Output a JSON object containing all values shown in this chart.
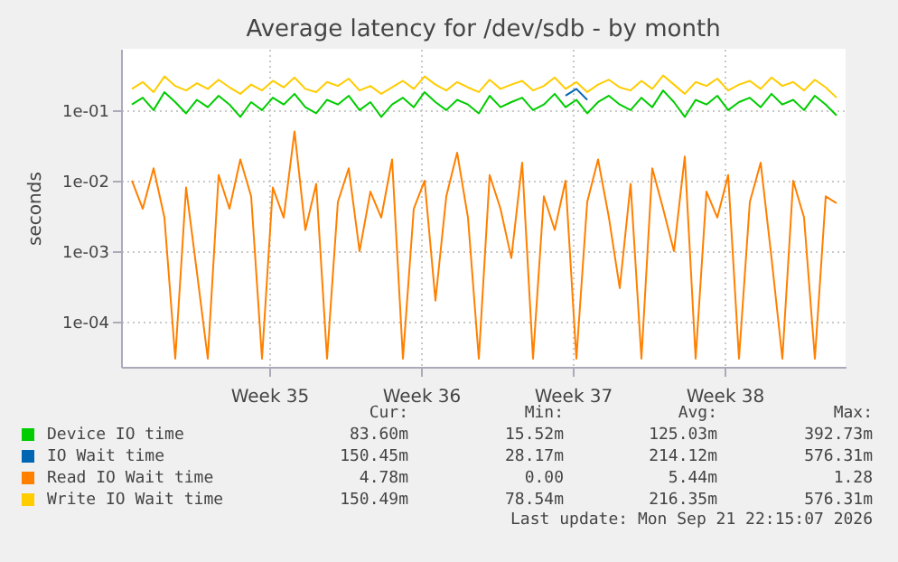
{
  "chart_data": {
    "type": "line",
    "title": "Average latency for /dev/sdb - by month",
    "ylabel": "seconds",
    "log": true,
    "grid": true,
    "legend": "bottom",
    "xlim": [
      "2026-08-19T12:00",
      "2026-09-21T22:00"
    ],
    "xticks": [
      {
        "value": "2026-08-26T08:00",
        "label": "Week 35"
      },
      {
        "value": "2026-09-02T08:00",
        "label": "Week 36"
      },
      {
        "value": "2026-09-09T08:00",
        "label": "Week 37"
      },
      {
        "value": "2026-09-16T08:00",
        "label": "Week 38"
      }
    ],
    "ylim": [
      2.3e-05,
      0.74
    ],
    "yticks": [
      {
        "value": 0.0001,
        "label": "1e-04"
      },
      {
        "value": 0.001,
        "label": "1e-03"
      },
      {
        "value": 0.01,
        "label": "1e-02"
      },
      {
        "value": 0.1,
        "label": "1e-01"
      }
    ],
    "x": [
      "2026-08-20T00:00",
      "2026-08-20T12:00",
      "2026-08-21T00:00",
      "2026-08-21T12:00",
      "2026-08-22T00:00",
      "2026-08-22T12:00",
      "2026-08-23T00:00",
      "2026-08-23T12:00",
      "2026-08-24T00:00",
      "2026-08-24T12:00",
      "2026-08-25T00:00",
      "2026-08-25T12:00",
      "2026-08-26T00:00",
      "2026-08-26T12:00",
      "2026-08-27T00:00",
      "2026-08-27T12:00",
      "2026-08-28T00:00",
      "2026-08-28T12:00",
      "2026-08-29T00:00",
      "2026-08-29T12:00",
      "2026-08-30T00:00",
      "2026-08-30T12:00",
      "2026-08-31T00:00",
      "2026-08-31T12:00",
      "2026-09-01T00:00",
      "2026-09-01T12:00",
      "2026-09-02T00:00",
      "2026-09-02T12:00",
      "2026-09-03T00:00",
      "2026-09-03T12:00",
      "2026-09-04T00:00",
      "2026-09-04T12:00",
      "2026-09-05T00:00",
      "2026-09-05T12:00",
      "2026-09-06T00:00",
      "2026-09-06T12:00",
      "2026-09-07T00:00",
      "2026-09-07T12:00",
      "2026-09-08T00:00",
      "2026-09-08T12:00",
      "2026-09-09T00:00",
      "2026-09-09T12:00",
      "2026-09-10T00:00",
      "2026-09-10T12:00",
      "2026-09-11T00:00",
      "2026-09-11T12:00",
      "2026-09-12T00:00",
      "2026-09-12T12:00",
      "2026-09-13T00:00",
      "2026-09-13T12:00",
      "2026-09-14T00:00",
      "2026-09-14T12:00",
      "2026-09-15T00:00",
      "2026-09-15T12:00",
      "2026-09-16T00:00",
      "2026-09-16T12:00",
      "2026-09-17T00:00",
      "2026-09-17T12:00",
      "2026-09-18T00:00",
      "2026-09-18T12:00",
      "2026-09-19T00:00",
      "2026-09-19T12:00",
      "2026-09-20T00:00",
      "2026-09-20T12:00",
      "2026-09-21T00:00",
      "2026-09-21T12:00"
    ],
    "series": [
      {
        "name": "Device IO time",
        "color": "#00cc00",
        "values": [
          0.12,
          0.15,
          0.1,
          0.18,
          0.13,
          0.09,
          0.14,
          0.11,
          0.16,
          0.12,
          0.08,
          0.13,
          0.1,
          0.15,
          0.12,
          0.17,
          0.11,
          0.09,
          0.14,
          0.12,
          0.16,
          0.1,
          0.13,
          0.08,
          0.12,
          0.15,
          0.11,
          0.18,
          0.13,
          0.1,
          0.14,
          0.12,
          0.09,
          0.16,
          0.11,
          0.13,
          0.15,
          0.1,
          0.12,
          0.17,
          0.11,
          0.14,
          0.09,
          0.13,
          0.16,
          0.12,
          0.1,
          0.15,
          0.11,
          0.19,
          0.13,
          0.08,
          0.14,
          0.12,
          0.16,
          0.1,
          0.13,
          0.15,
          0.11,
          0.17,
          0.12,
          0.14,
          0.1,
          0.16,
          0.12,
          0.084
        ]
      },
      {
        "name": "IO Wait time",
        "color": "#0066b3",
        "values": [
          null,
          null,
          null,
          null,
          null,
          null,
          null,
          null,
          null,
          null,
          null,
          null,
          null,
          null,
          null,
          null,
          null,
          null,
          null,
          null,
          null,
          null,
          null,
          null,
          null,
          null,
          null,
          null,
          null,
          null,
          null,
          null,
          null,
          null,
          null,
          null,
          null,
          null,
          null,
          null,
          0.16,
          0.2,
          0.14,
          null,
          null,
          null,
          null,
          null,
          null,
          null,
          null,
          null,
          null,
          null,
          null,
          null,
          null,
          null,
          null,
          null,
          null,
          null,
          null,
          null,
          null,
          null
        ]
      },
      {
        "name": "Read IO Wait time",
        "color": "#ff8000",
        "values": [
          0.01,
          0.004,
          0.015,
          0.003,
          3e-05,
          0.008,
          0.0005,
          3e-05,
          0.012,
          0.004,
          0.02,
          0.006,
          3e-05,
          0.008,
          0.003,
          0.05,
          0.002,
          0.009,
          3e-05,
          0.005,
          0.015,
          0.001,
          0.007,
          0.003,
          0.02,
          3e-05,
          0.004,
          0.01,
          0.0002,
          0.006,
          0.025,
          0.003,
          3e-05,
          0.012,
          0.004,
          0.0008,
          0.018,
          3e-05,
          0.006,
          0.002,
          0.01,
          3e-05,
          0.005,
          0.02,
          0.003,
          0.0003,
          0.009,
          3e-05,
          0.015,
          0.004,
          0.001,
          0.022,
          3e-05,
          0.007,
          0.003,
          0.012,
          3e-05,
          0.005,
          0.018,
          0.0008,
          3e-05,
          0.01,
          0.003,
          3e-05,
          0.006,
          0.0048
        ]
      },
      {
        "name": "Write IO Wait time",
        "color": "#ffcc00",
        "values": [
          0.2,
          0.25,
          0.18,
          0.3,
          0.22,
          0.19,
          0.24,
          0.2,
          0.27,
          0.21,
          0.17,
          0.23,
          0.19,
          0.26,
          0.21,
          0.29,
          0.2,
          0.18,
          0.25,
          0.22,
          0.28,
          0.19,
          0.22,
          0.17,
          0.21,
          0.26,
          0.2,
          0.3,
          0.23,
          0.19,
          0.25,
          0.21,
          0.18,
          0.27,
          0.2,
          0.23,
          0.26,
          0.19,
          0.22,
          0.29,
          0.2,
          0.25,
          0.18,
          0.23,
          0.27,
          0.21,
          0.19,
          0.26,
          0.2,
          0.31,
          0.23,
          0.17,
          0.25,
          0.22,
          0.28,
          0.19,
          0.23,
          0.26,
          0.2,
          0.29,
          0.22,
          0.25,
          0.19,
          0.27,
          0.21,
          0.15
        ]
      }
    ],
    "annotations": [
      "Cur:",
      "Min:",
      "Avg:",
      "Max:",
      "83.60m",
      "15.52m",
      "125.03m",
      "392.73m",
      "150.45m",
      "28.17m",
      "214.12m",
      "576.31m",
      "4.78m",
      "0.00",
      "5.44m",
      "1.28",
      "150.49m",
      "78.54m",
      "216.35m",
      "576.31m",
      "Last update: Mon Sep 21 22:15:07 2026"
    ]
  }
}
